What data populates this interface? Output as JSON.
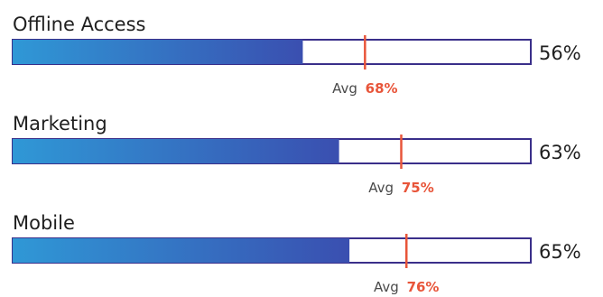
{
  "chart_data": {
    "type": "bar",
    "orientation": "horizontal",
    "style": "bullet",
    "xlim": [
      0,
      100
    ],
    "categories": [
      "Offline Access",
      "Marketing",
      "Mobile"
    ],
    "values": [
      56,
      63,
      65
    ],
    "value_labels": [
      "56%",
      "63%",
      "65%"
    ],
    "avg_prefix": "Avg",
    "averages": [
      68,
      75,
      76
    ],
    "average_labels": [
      "68%",
      "75%",
      "76%"
    ],
    "colors": {
      "bar_start": "#2f98d6",
      "bar_end": "#3a4fb0",
      "outline": "#3a2f8a",
      "average_marker": "#e8553a",
      "average_value": "#e8553a"
    }
  }
}
